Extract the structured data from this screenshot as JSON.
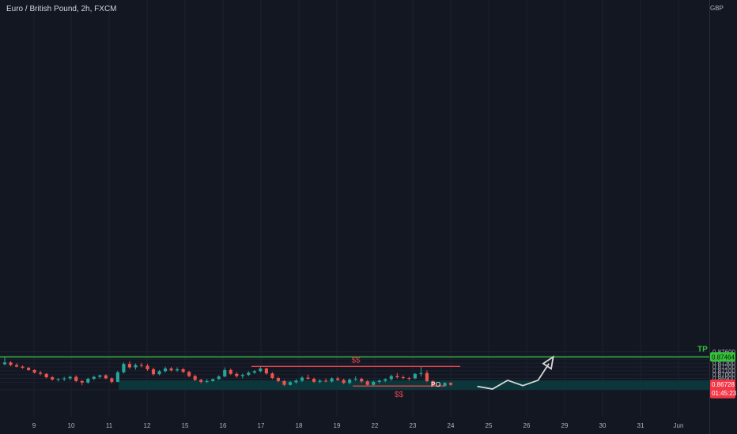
{
  "header": {
    "symbol": "Euro / British Pound, 2h, FXCM",
    "currency": "GBP"
  },
  "colors": {
    "background": "#131722",
    "up": "#26a69a",
    "down": "#ef5350",
    "zone": "#0c3a3d",
    "tp": "#36c13b",
    "liquidity": "#e0434b",
    "projection": "#d8d8d8",
    "price_label": "#f23645"
  },
  "chart_data": {
    "type": "candlestick",
    "x_tick_labels": [
      "9",
      "10",
      "11",
      "12",
      "15",
      "16",
      "17",
      "18",
      "19",
      "22",
      "23",
      "24",
      "25",
      "26",
      "29",
      "30",
      "31",
      "Jun"
    ],
    "y_tick_labels": [
      "0.87600",
      "0.87500",
      "0.87400",
      "0.87300",
      "0.87200",
      "0.87100",
      "0.87000",
      "0.86900",
      "0.86800",
      "0.86600"
    ],
    "ylim": [
      0.866,
      0.8764
    ],
    "current_price": {
      "price": "0.86728",
      "countdown": "01:45:23"
    },
    "tp_level": {
      "label": "TP",
      "price": "0.87464"
    },
    "demand_zone": {
      "low": 0.866,
      "high": 0.8685
    },
    "liquidity_marks": [
      {
        "label": "$$",
        "price": 0.87215
      },
      {
        "label": "$$",
        "price": 0.867
      }
    ],
    "annotation": "PO",
    "candles": [
      [
        0.8727,
        0.8746,
        0.8725,
        0.8732
      ],
      [
        0.8732,
        0.8735,
        0.8722,
        0.8725
      ],
      [
        0.8725,
        0.873,
        0.8719,
        0.8721
      ],
      [
        0.8721,
        0.8724,
        0.8715,
        0.8718
      ],
      [
        0.8718,
        0.872,
        0.871,
        0.8712
      ],
      [
        0.8712,
        0.8714,
        0.8703,
        0.8705
      ],
      [
        0.8705,
        0.871,
        0.8698,
        0.8702
      ],
      [
        0.8702,
        0.8704,
        0.869,
        0.8693
      ],
      [
        0.8693,
        0.8696,
        0.8684,
        0.8687
      ],
      [
        0.8687,
        0.8691,
        0.8682,
        0.8688
      ],
      [
        0.8688,
        0.8694,
        0.8683,
        0.869
      ],
      [
        0.869,
        0.8697,
        0.8686,
        0.8694
      ],
      [
        0.8694,
        0.8698,
        0.868,
        0.8683
      ],
      [
        0.8683,
        0.8686,
        0.8672,
        0.8679
      ],
      [
        0.8679,
        0.8692,
        0.8676,
        0.8689
      ],
      [
        0.8689,
        0.8697,
        0.8685,
        0.8694
      ],
      [
        0.8694,
        0.87,
        0.869,
        0.8698
      ],
      [
        0.8698,
        0.8701,
        0.8688,
        0.869
      ],
      [
        0.869,
        0.8693,
        0.8677,
        0.8681
      ],
      [
        0.8681,
        0.871,
        0.868,
        0.8706
      ],
      [
        0.8706,
        0.8732,
        0.8703,
        0.8728
      ],
      [
        0.8728,
        0.8735,
        0.8715,
        0.8719
      ],
      [
        0.8719,
        0.8729,
        0.8713,
        0.8725
      ],
      [
        0.8725,
        0.8731,
        0.8719,
        0.8723
      ],
      [
        0.8723,
        0.8728,
        0.871,
        0.8714
      ],
      [
        0.8714,
        0.8718,
        0.8697,
        0.8701
      ],
      [
        0.8701,
        0.8712,
        0.8698,
        0.8709
      ],
      [
        0.8709,
        0.8721,
        0.8705,
        0.8716
      ],
      [
        0.8716,
        0.872,
        0.8708,
        0.8711
      ],
      [
        0.8711,
        0.8719,
        0.8707,
        0.8714
      ],
      [
        0.8714,
        0.8717,
        0.8704,
        0.8707
      ],
      [
        0.8707,
        0.871,
        0.8693,
        0.8696
      ],
      [
        0.8696,
        0.87,
        0.8683,
        0.8686
      ],
      [
        0.8686,
        0.8689,
        0.8677,
        0.8681
      ],
      [
        0.8681,
        0.8688,
        0.8678,
        0.8683
      ],
      [
        0.8683,
        0.869,
        0.8681,
        0.8688
      ],
      [
        0.8688,
        0.8698,
        0.8686,
        0.8695
      ],
      [
        0.8695,
        0.8719,
        0.8693,
        0.8712
      ],
      [
        0.8712,
        0.8716,
        0.8699,
        0.8702
      ],
      [
        0.8702,
        0.8706,
        0.8692,
        0.8696
      ],
      [
        0.8696,
        0.8703,
        0.869,
        0.8699
      ],
      [
        0.8699,
        0.8709,
        0.8696,
        0.8705
      ],
      [
        0.8705,
        0.8712,
        0.8702,
        0.8709
      ],
      [
        0.8709,
        0.872,
        0.8706,
        0.8716
      ],
      [
        0.8716,
        0.8718,
        0.87,
        0.8703
      ],
      [
        0.8703,
        0.8706,
        0.8688,
        0.8691
      ],
      [
        0.8691,
        0.8694,
        0.868,
        0.8683
      ],
      [
        0.8683,
        0.8686,
        0.867,
        0.8673
      ],
      [
        0.8673,
        0.8683,
        0.8671,
        0.868
      ],
      [
        0.868,
        0.8688,
        0.8676,
        0.8684
      ],
      [
        0.8684,
        0.8696,
        0.868,
        0.8692
      ],
      [
        0.8692,
        0.87,
        0.8687,
        0.8689
      ],
      [
        0.8689,
        0.8692,
        0.8678,
        0.8681
      ],
      [
        0.8681,
        0.8688,
        0.8677,
        0.8684
      ],
      [
        0.8684,
        0.869,
        0.868,
        0.8682
      ],
      [
        0.8682,
        0.8693,
        0.8679,
        0.869
      ],
      [
        0.869,
        0.8694,
        0.8683,
        0.8686
      ],
      [
        0.8686,
        0.8689,
        0.8675,
        0.8678
      ],
      [
        0.8678,
        0.869,
        0.8674,
        0.8687
      ],
      [
        0.8687,
        0.8695,
        0.8683,
        0.8689
      ],
      [
        0.8689,
        0.8692,
        0.8678,
        0.8682
      ],
      [
        0.8682,
        0.8686,
        0.867,
        0.8673
      ],
      [
        0.8673,
        0.8684,
        0.8671,
        0.8681
      ],
      [
        0.8681,
        0.8687,
        0.8677,
        0.8684
      ],
      [
        0.8684,
        0.869,
        0.868,
        0.8688
      ],
      [
        0.8688,
        0.87,
        0.8684,
        0.8696
      ],
      [
        0.8696,
        0.8704,
        0.869,
        0.8693
      ],
      [
        0.8693,
        0.8698,
        0.8688,
        0.8691
      ],
      [
        0.8691,
        0.8694,
        0.8684,
        0.869
      ],
      [
        0.869,
        0.8704,
        0.8688,
        0.8702
      ],
      [
        0.8702,
        0.872,
        0.8695,
        0.8704
      ],
      [
        0.8704,
        0.8711,
        0.868,
        0.8683
      ],
      [
        0.8683,
        0.8685,
        0.8668,
        0.8671
      ],
      [
        0.8671,
        0.8674,
        0.8668,
        0.867
      ],
      [
        0.867,
        0.868,
        0.8668,
        0.8678
      ],
      [
        0.8678,
        0.868,
        0.867,
        0.8673
      ]
    ],
    "projection_path": [
      [
        24.7,
        0.8669
      ],
      [
        25.1,
        0.8662
      ],
      [
        25.5,
        0.8685
      ],
      [
        25.9,
        0.8671
      ],
      [
        26.3,
        0.8685
      ],
      [
        26.7,
        0.87464
      ]
    ]
  }
}
